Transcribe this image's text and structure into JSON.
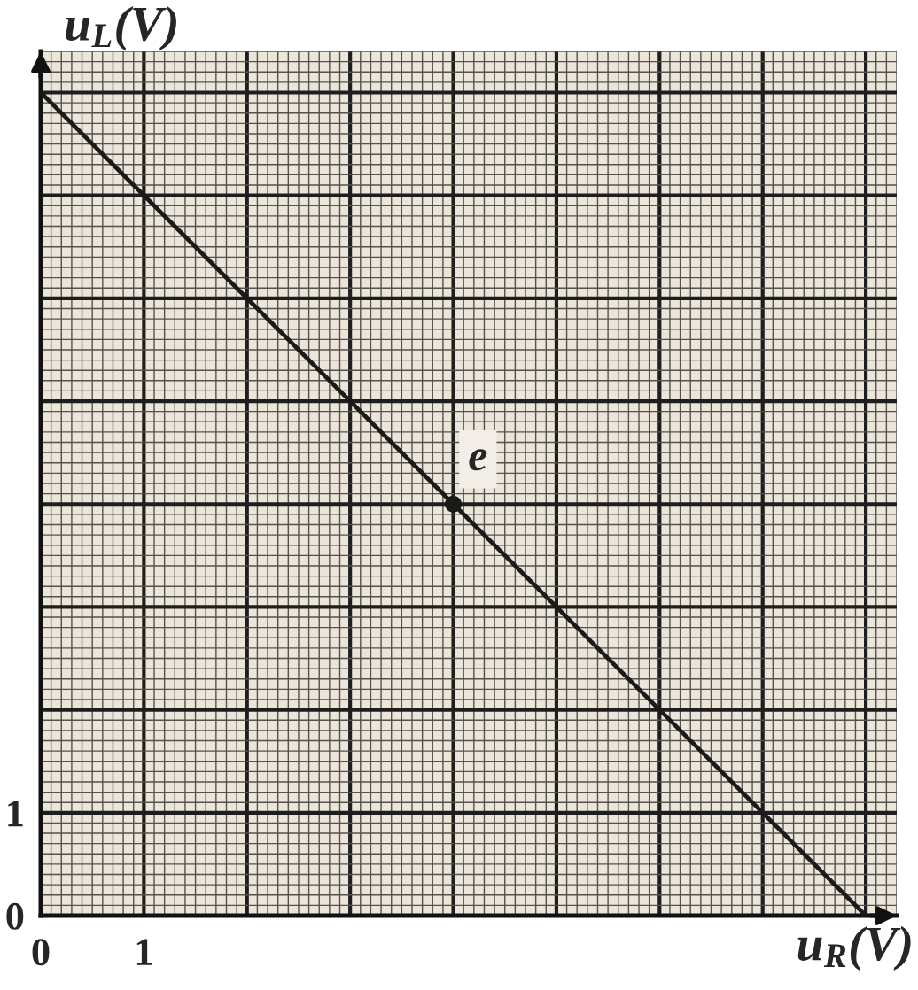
{
  "chart_data": {
    "type": "line",
    "xlabel": "u$_{R}$(V)",
    "ylabel": "u$_{L}$(V)",
    "series": [
      {
        "x": [
          0,
          8
        ],
        "values": [
          8,
          0
        ],
        "color": "#1a1a1a",
        "line_style": "solid"
      },
      {
        "type": "scatter",
        "x": [
          4
        ],
        "values": [
          4
        ],
        "color": "#1a1a1a",
        "marker": "circle"
      }
    ],
    "annotations": [
      {
        "text": "e",
        "x": 4,
        "y": 4
      }
    ],
    "xlim": [
      0,
      8.3
    ],
    "ylim": [
      0,
      8.4
    ],
    "xticks": [
      0,
      1,
      {
        "value": 2,
        "label": null
      },
      {
        "value": 3,
        "label": null
      },
      {
        "value": 4,
        "label": null
      },
      {
        "value": 5,
        "label": null
      },
      {
        "value": 6,
        "label": null
      },
      {
        "value": 7,
        "label": null
      },
      {
        "value": 8,
        "label": null
      }
    ],
    "yticks": [
      0,
      1,
      {
        "value": 2,
        "label": null
      },
      {
        "value": 3,
        "label": null
      },
      {
        "value": 4,
        "label": null
      },
      {
        "value": 5,
        "label": null
      },
      {
        "value": 6,
        "label": null
      },
      {
        "value": 7,
        "label": null
      },
      {
        "value": 8,
        "label": null
      }
    ],
    "grid": true
  }
}
